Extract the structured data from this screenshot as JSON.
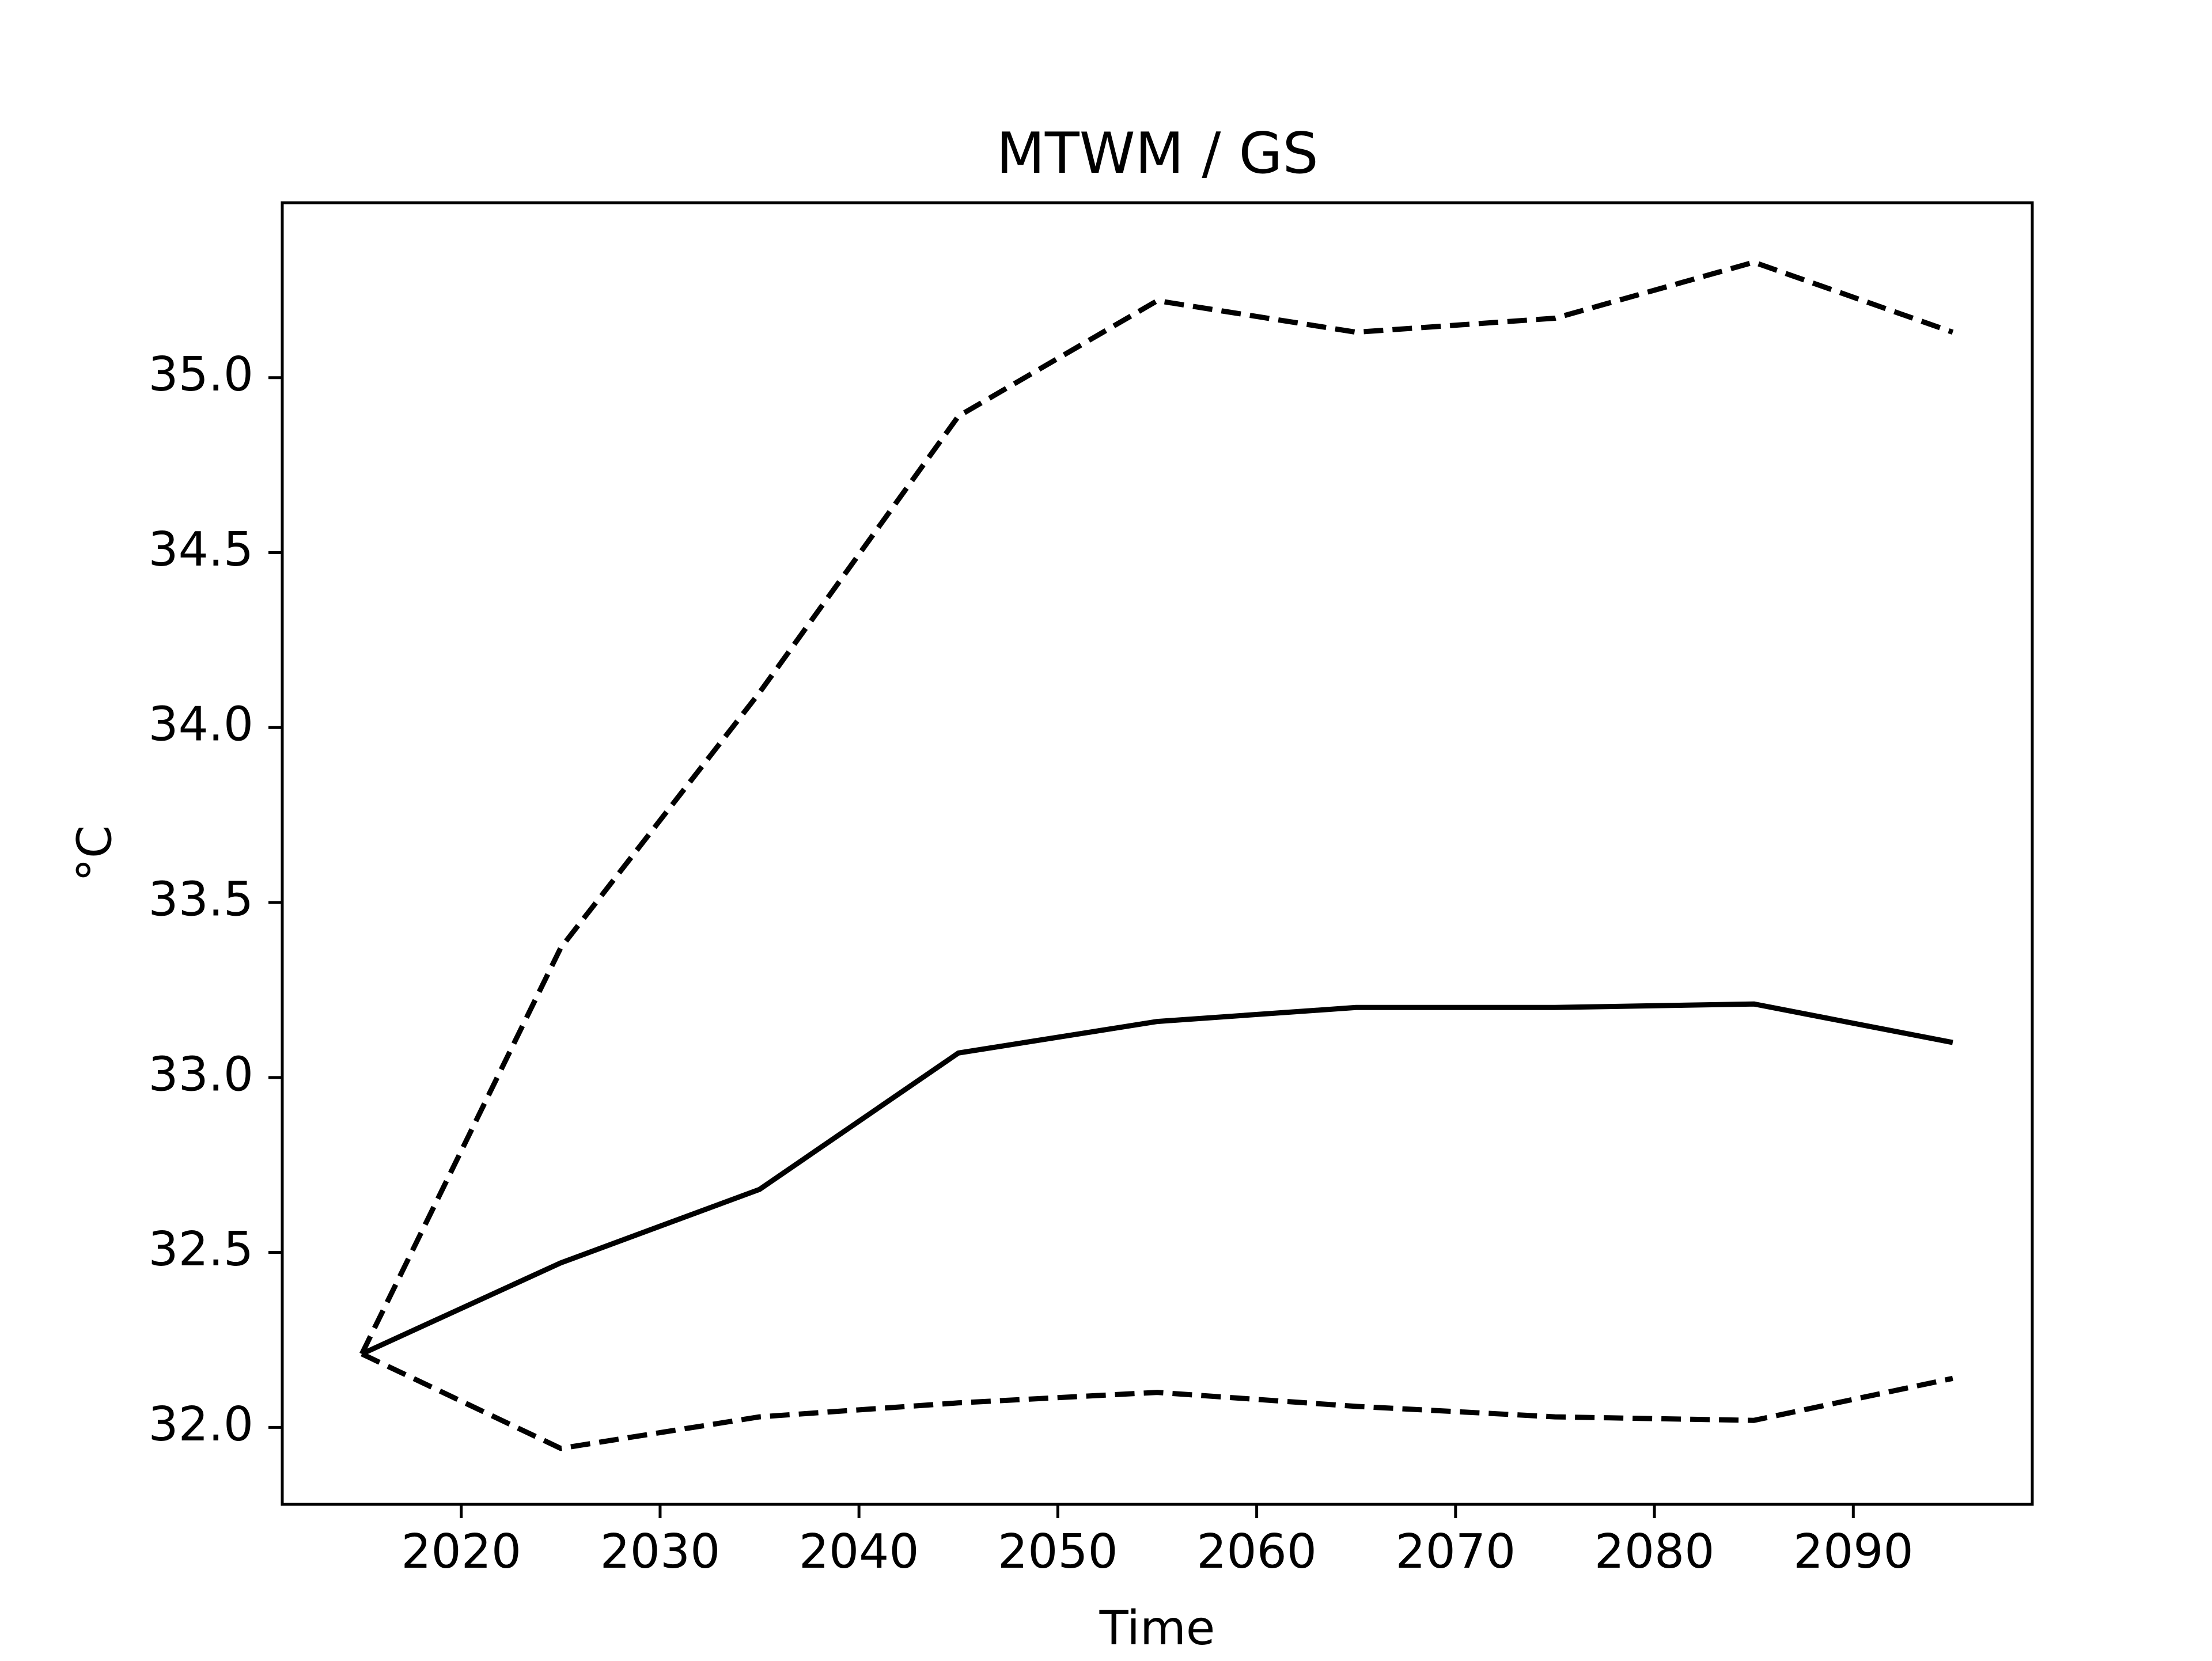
{
  "chart_data": {
    "type": "line",
    "title": "MTWM / GS",
    "xlabel": "Time",
    "ylabel": "°C",
    "xlim": [
      2011,
      2099
    ],
    "ylim": [
      31.78,
      35.5
    ],
    "xticks": [
      2020,
      2030,
      2040,
      2050,
      2060,
      2070,
      2080,
      2090
    ],
    "yticks": [
      32.0,
      32.5,
      33.0,
      33.5,
      34.0,
      34.5,
      35.0
    ],
    "ytick_labels": [
      "32.0",
      "32.5",
      "33.0",
      "33.5",
      "34.0",
      "34.5",
      "35.0"
    ],
    "grid": false,
    "legend": "none",
    "x": [
      2015,
      2025,
      2035,
      2045,
      2055,
      2065,
      2075,
      2085,
      2095
    ],
    "series": [
      {
        "style": "dashed",
        "color": "#000000",
        "values": [
          32.21,
          33.37,
          34.1,
          34.89,
          35.22,
          35.13,
          35.17,
          35.33,
          35.13
        ]
      },
      {
        "style": "solid",
        "color": "#000000",
        "values": [
          32.21,
          32.47,
          32.68,
          33.07,
          33.16,
          33.2,
          33.2,
          33.21,
          33.1
        ]
      },
      {
        "style": "dashed",
        "color": "#000000",
        "values": [
          32.21,
          31.94,
          32.03,
          32.07,
          32.1,
          32.06,
          32.03,
          32.02,
          32.14
        ]
      }
    ]
  }
}
